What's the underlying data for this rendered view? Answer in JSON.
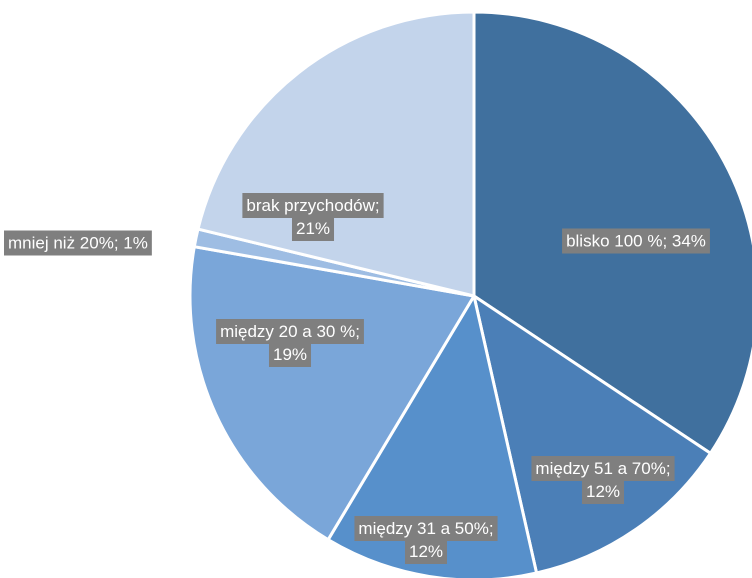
{
  "chart_data": {
    "type": "pie",
    "slices": [
      {
        "label": "blisko 100 %",
        "value": 34,
        "display": "34%",
        "color": "#40709e"
      },
      {
        "label": "między 51 a 70%",
        "value": 12,
        "display": "12%",
        "color": "#4b7fb7"
      },
      {
        "label": "między 31 a 50%",
        "value": 12,
        "display": "12%",
        "color": "#5790cb"
      },
      {
        "label": "między 20 a 30 %",
        "value": 19,
        "display": "19%",
        "color": "#7aa6d9"
      },
      {
        "label": "mniej niż 20%",
        "value": 1,
        "display": "1%",
        "color": "#9ebde3"
      },
      {
        "label": "brak przychodów",
        "value": 21,
        "display": "21%",
        "color": "#c3d4eb"
      }
    ],
    "label_style": {
      "background": "#7f7f7f",
      "text_color": "#ffffff"
    }
  }
}
